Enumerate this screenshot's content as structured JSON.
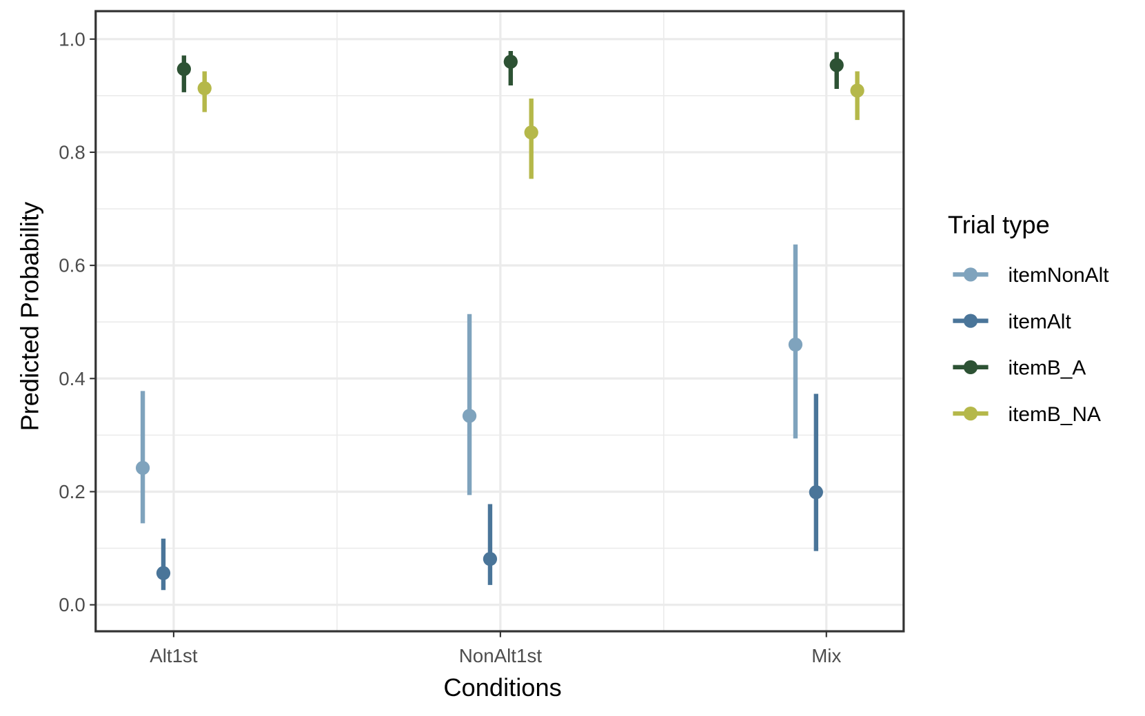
{
  "chart_data": {
    "type": "scatter",
    "subtype": "pointrange",
    "title": "",
    "xlabel": "Conditions",
    "ylabel": "Predicted Probability",
    "categories": [
      "Alt1st",
      "NonAlt1st",
      "Mix"
    ],
    "ylim": [
      -0.047,
      1.049
    ],
    "yticks": [
      "0.0",
      "0.2",
      "0.4",
      "0.6",
      "0.8",
      "1.0"
    ],
    "grid": true,
    "legend": {
      "title": "Trial type",
      "position": "right"
    },
    "series": [
      {
        "name": "itemNonAlt",
        "color": "#7fa3bd",
        "values": [
          0.242,
          0.334,
          0.46
        ],
        "lower": [
          0.144,
          0.194,
          0.294
        ],
        "upper": [
          0.378,
          0.514,
          0.637
        ]
      },
      {
        "name": "itemAlt",
        "color": "#4a7599",
        "values": [
          0.056,
          0.081,
          0.199
        ],
        "lower": [
          0.026,
          0.035,
          0.095
        ],
        "upper": [
          0.117,
          0.178,
          0.373
        ]
      },
      {
        "name": "itemB_A",
        "color": "#2d5234",
        "values": [
          0.947,
          0.96,
          0.954
        ],
        "lower": [
          0.906,
          0.918,
          0.912
        ],
        "upper": [
          0.971,
          0.979,
          0.977
        ]
      },
      {
        "name": "itemB_NA",
        "color": "#b5b84a",
        "values": [
          0.913,
          0.835,
          0.909
        ],
        "lower": [
          0.871,
          0.753,
          0.857
        ],
        "upper": [
          0.943,
          0.895,
          0.943
        ]
      }
    ]
  }
}
